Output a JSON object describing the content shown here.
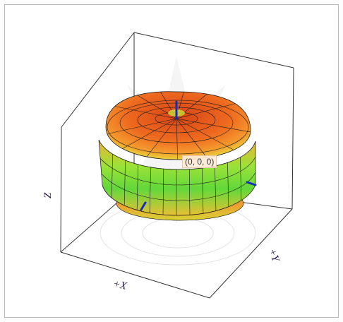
{
  "viewer": {
    "origin_label": "(0, 0, 0)",
    "axes": {
      "z_label": "Z",
      "x_label": "+X",
      "y_label": "+Y"
    }
  },
  "colors": {
    "surface_top": "#e8551f",
    "surface_mid": "#f5a43a",
    "surface_band": "#7ee23b",
    "box_edge": "#333333",
    "axis_marker": "#1a2db8",
    "axis_label": "#2b1a55"
  }
}
